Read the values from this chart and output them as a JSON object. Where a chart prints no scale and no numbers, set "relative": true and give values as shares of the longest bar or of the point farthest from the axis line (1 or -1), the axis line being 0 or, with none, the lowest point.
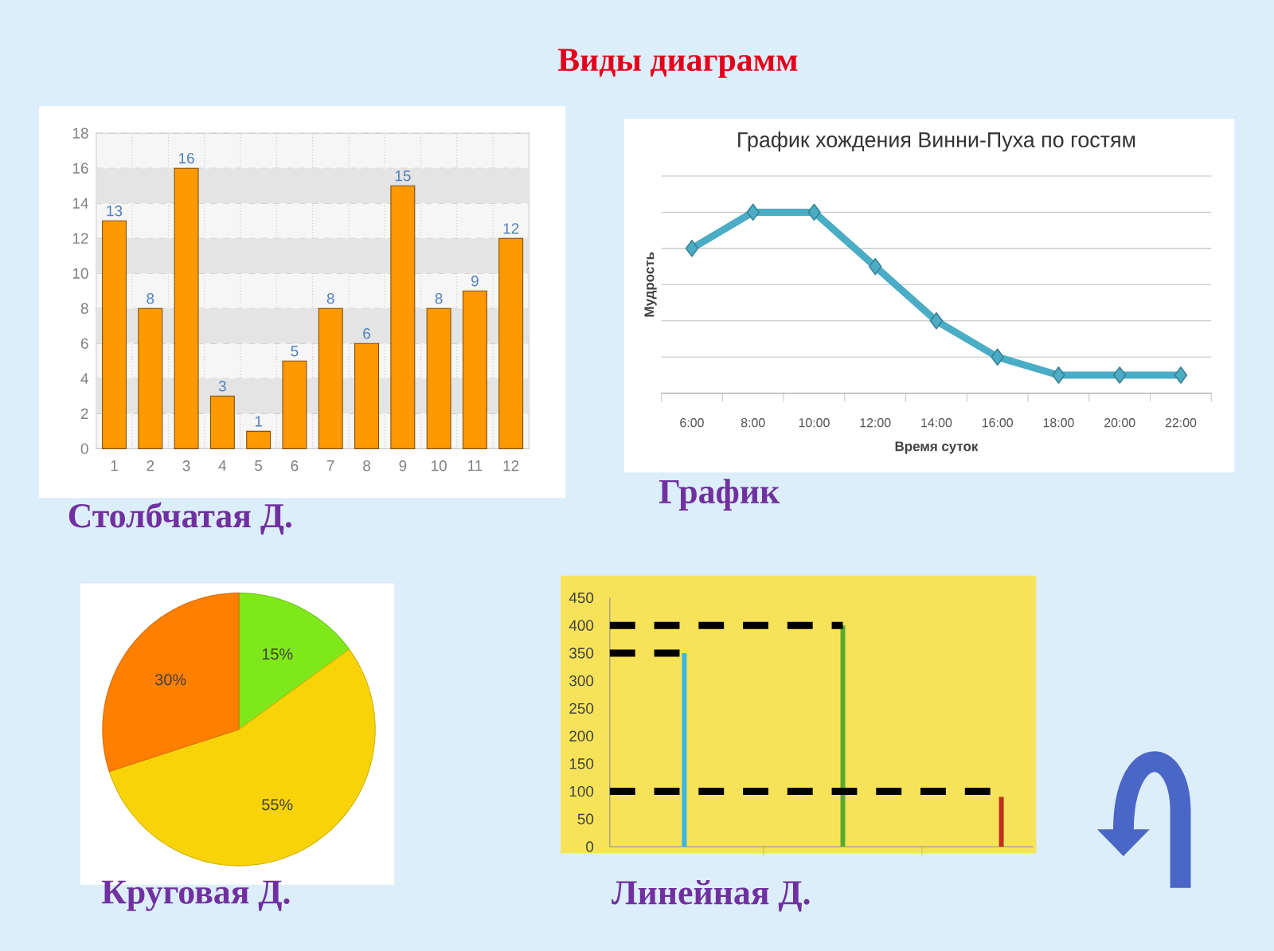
{
  "chart_data": [
    {
      "type": "other",
      "title": "Виды диаграмм"
    },
    {
      "type": "bar",
      "categories": [
        "1",
        "2",
        "3",
        "4",
        "5",
        "6",
        "7",
        "8",
        "9",
        "10",
        "11",
        "12"
      ],
      "values": [
        13,
        8,
        16,
        3,
        1,
        5,
        8,
        6,
        15,
        8,
        9,
        12
      ],
      "color": "#FF9900",
      "ylim": [
        0,
        18
      ],
      "yticks": [
        0,
        2,
        4,
        6,
        8,
        10,
        12,
        14,
        16,
        18
      ],
      "grid": true,
      "data_labels": true,
      "bands": [
        {
          "axis": "y",
          "from": 2,
          "to": 4,
          "color": "#E4E4E4"
        },
        {
          "axis": "y",
          "from": 6,
          "to": 8,
          "color": "#E4E4E4"
        },
        {
          "axis": "y",
          "from": 10,
          "to": 12,
          "color": "#E4E4E4"
        },
        {
          "axis": "y",
          "from": 14,
          "to": 16,
          "color": "#E4E4E4"
        }
      ],
      "annotations": [
        "Столбчатая Д."
      ]
    },
    {
      "type": "line",
      "title": "График хождения Винни-Пуха по гостям",
      "xlabel": "Время суток",
      "ylabel": "Мудрость",
      "categories": [
        "6:00",
        "8:00",
        "10:00",
        "12:00",
        "14:00",
        "16:00",
        "18:00",
        "20:00",
        "22:00"
      ],
      "values": [
        0.8,
        1,
        1,
        0.7,
        0.4,
        0.2,
        0.1,
        0.1,
        0.1
      ],
      "color": "#4BACC6",
      "relative": true,
      "grid": "y",
      "marker": "diamond",
      "annotations": [
        "График"
      ]
    },
    {
      "type": "pie",
      "categories": [
        null,
        null,
        null
      ],
      "values": [
        15,
        55,
        30
      ],
      "colors": [
        "#7FE81A",
        "#F7D308",
        "#FF7F00"
      ],
      "value_labels": [
        "15%",
        "55%",
        "30%"
      ],
      "annotations": [
        "Круговая Д."
      ]
    },
    {
      "type": "bar",
      "categories": [
        null,
        null,
        null
      ],
      "values": [
        350,
        400,
        90
      ],
      "colors": [
        "#3DB6E0",
        "#5BAA30",
        "#C0301A"
      ],
      "ylim": [
        0,
        450
      ],
      "yticks": [
        0,
        50,
        100,
        150,
        200,
        250,
        300,
        350,
        400,
        450
      ],
      "ref_lines": [
        {
          "axis": "y",
          "value": 400,
          "color": "#000000",
          "line_style": "dashed"
        },
        {
          "axis": "y",
          "value": 350,
          "color": "#000000",
          "line_style": "dashed"
        },
        {
          "axis": "y",
          "value": 100,
          "color": "#000000",
          "line_style": "dashed"
        }
      ],
      "annotations": [
        "Линейная Д."
      ]
    }
  ]
}
